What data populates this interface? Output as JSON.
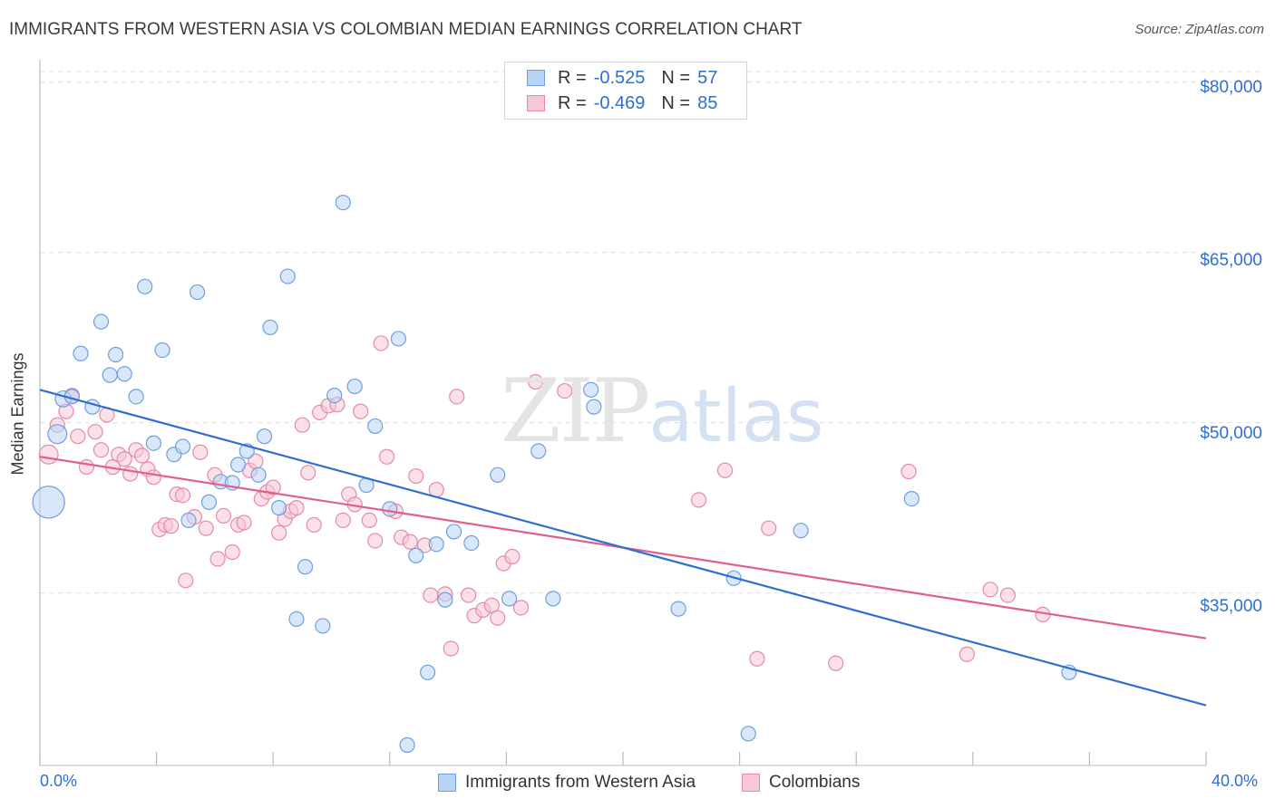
{
  "title": "IMMIGRANTS FROM WESTERN ASIA VS COLOMBIAN MEDIAN EARNINGS CORRELATION CHART",
  "source": "Source: ZipAtlas.com",
  "watermark": {
    "zip": "ZIP",
    "atlas": "atlas"
  },
  "legend": {
    "r_label": "R =",
    "n_label": "N =",
    "series1": {
      "r": "-0.525",
      "n": "57"
    },
    "series2": {
      "r": "-0.469",
      "n": "85"
    }
  },
  "colors": {
    "series1_fill": "#b9d3f5",
    "series1_stroke": "#6f9fdd",
    "series1_line": "#2f6fd0",
    "series2_fill": "#f8c7d6",
    "series2_stroke": "#e58aa8",
    "series2_line": "#e05f8e",
    "tick_text": "#2f6fd0",
    "grid": "#dddddd"
  },
  "chart_data": {
    "type": "scatter",
    "title": "IMMIGRANTS FROM WESTERN ASIA VS COLOMBIAN MEDIAN EARNINGS CORRELATION CHART",
    "xlabel": "",
    "ylabel": "Median Earnings",
    "xlim": [
      0,
      40
    ],
    "ylim": [
      21000,
      81500
    ],
    "x_tick_labels": [
      "0.0%",
      "40.0%"
    ],
    "y_ticks": [
      35000,
      50000,
      65000,
      80000
    ],
    "y_tick_labels": [
      "$35,000",
      "$50,000",
      "$65,000",
      "$80,000"
    ],
    "grid": true,
    "legend_position": "top-center",
    "series": [
      {
        "name": "Immigrants from Western Asia",
        "trend": {
          "x": [
            0,
            40
          ],
          "y": [
            52900,
            25100
          ]
        },
        "points": [
          [
            0.3,
            43000,
            2.2
          ],
          [
            0.6,
            49000,
            1.3
          ],
          [
            0.8,
            52100,
            1.1
          ],
          [
            1.1,
            52300,
            1.0
          ],
          [
            1.4,
            56100,
            1.0
          ],
          [
            1.8,
            51400,
            1.0
          ],
          [
            2.1,
            58900,
            1.0
          ],
          [
            2.4,
            54200,
            1.0
          ],
          [
            2.6,
            56000,
            1.0
          ],
          [
            2.9,
            54300,
            1.0
          ],
          [
            3.3,
            52300,
            1.0
          ],
          [
            3.6,
            62000,
            1.0
          ],
          [
            3.9,
            48200,
            1.0
          ],
          [
            4.2,
            56400,
            1.0
          ],
          [
            4.6,
            47200,
            1.0
          ],
          [
            4.9,
            47900,
            1.0
          ],
          [
            5.1,
            41400,
            1.0
          ],
          [
            5.4,
            61500,
            1.0
          ],
          [
            5.8,
            43000,
            1.0
          ],
          [
            6.2,
            44800,
            1.0
          ],
          [
            6.6,
            44700,
            1.0
          ],
          [
            6.8,
            46300,
            1.0
          ],
          [
            7.1,
            47500,
            1.0
          ],
          [
            7.5,
            45400,
            1.0
          ],
          [
            7.7,
            48800,
            1.0
          ],
          [
            7.9,
            58400,
            1.0
          ],
          [
            8.2,
            42500,
            1.0
          ],
          [
            8.5,
            62900,
            1.0
          ],
          [
            8.8,
            32700,
            1.0
          ],
          [
            9.1,
            37300,
            1.0
          ],
          [
            9.7,
            32100,
            1.0
          ],
          [
            10.1,
            52400,
            1.0
          ],
          [
            10.4,
            69400,
            1.0
          ],
          [
            10.8,
            53200,
            1.0
          ],
          [
            11.2,
            44500,
            1.0
          ],
          [
            11.5,
            49700,
            1.0
          ],
          [
            12.0,
            42400,
            1.0
          ],
          [
            12.3,
            57400,
            1.0
          ],
          [
            12.6,
            21600,
            1.0
          ],
          [
            12.9,
            38300,
            1.0
          ],
          [
            13.3,
            28000,
            1.0
          ],
          [
            13.6,
            39300,
            1.0
          ],
          [
            13.9,
            34400,
            1.0
          ],
          [
            14.2,
            40400,
            1.0
          ],
          [
            14.8,
            39400,
            1.0
          ],
          [
            15.7,
            45400,
            1.0
          ],
          [
            16.1,
            34500,
            1.0
          ],
          [
            17.1,
            47500,
            1.0
          ],
          [
            17.6,
            34500,
            1.0
          ],
          [
            18.9,
            52900,
            1.0
          ],
          [
            19.0,
            51400,
            1.0
          ],
          [
            21.9,
            33600,
            1.0
          ],
          [
            23.8,
            36300,
            1.0
          ],
          [
            24.3,
            22600,
            1.0
          ],
          [
            26.1,
            40500,
            1.0
          ],
          [
            29.9,
            43300,
            1.0
          ],
          [
            35.3,
            28000,
            1.0
          ]
        ]
      },
      {
        "name": "Colombians",
        "trend": {
          "x": [
            0,
            40
          ],
          "y": [
            47000,
            31000
          ]
        },
        "points": [
          [
            0.3,
            47200,
            1.3
          ],
          [
            0.6,
            49800,
            1.0
          ],
          [
            0.9,
            51000,
            1.0
          ],
          [
            1.1,
            52400,
            1.0
          ],
          [
            1.3,
            48800,
            1.0
          ],
          [
            1.6,
            46100,
            1.0
          ],
          [
            1.9,
            49200,
            1.0
          ],
          [
            2.1,
            47600,
            1.0
          ],
          [
            2.3,
            50700,
            1.0
          ],
          [
            2.5,
            46100,
            1.0
          ],
          [
            2.7,
            47200,
            1.0
          ],
          [
            2.9,
            46800,
            1.0
          ],
          [
            3.1,
            45500,
            1.0
          ],
          [
            3.3,
            47600,
            1.0
          ],
          [
            3.5,
            47100,
            1.0
          ],
          [
            3.7,
            45900,
            1.0
          ],
          [
            3.9,
            45200,
            1.0
          ],
          [
            4.1,
            40600,
            1.0
          ],
          [
            4.3,
            41000,
            1.0
          ],
          [
            4.5,
            40900,
            1.0
          ],
          [
            4.7,
            43700,
            1.0
          ],
          [
            4.9,
            43600,
            1.0
          ],
          [
            5.0,
            36100,
            1.0
          ],
          [
            5.3,
            41700,
            1.0
          ],
          [
            5.5,
            47400,
            1.0
          ],
          [
            5.7,
            40700,
            1.0
          ],
          [
            6.0,
            45400,
            1.0
          ],
          [
            6.1,
            38000,
            1.0
          ],
          [
            6.3,
            41800,
            1.0
          ],
          [
            6.6,
            38600,
            1.0
          ],
          [
            6.8,
            41000,
            1.0
          ],
          [
            7.0,
            41200,
            1.0
          ],
          [
            7.2,
            45800,
            1.0
          ],
          [
            7.4,
            46600,
            1.0
          ],
          [
            7.6,
            43300,
            1.0
          ],
          [
            7.8,
            43900,
            1.0
          ],
          [
            8.0,
            44300,
            1.0
          ],
          [
            8.2,
            40300,
            1.0
          ],
          [
            8.4,
            41500,
            1.0
          ],
          [
            8.6,
            42200,
            1.0
          ],
          [
            8.8,
            42500,
            1.0
          ],
          [
            9.0,
            49800,
            1.0
          ],
          [
            9.2,
            45600,
            1.0
          ],
          [
            9.4,
            41000,
            1.0
          ],
          [
            9.6,
            50900,
            1.0
          ],
          [
            9.9,
            51500,
            1.0
          ],
          [
            10.2,
            51600,
            1.0
          ],
          [
            10.4,
            41400,
            1.0
          ],
          [
            10.6,
            43700,
            1.0
          ],
          [
            10.8,
            42800,
            1.0
          ],
          [
            11.0,
            51000,
            1.0
          ],
          [
            11.3,
            41400,
            1.0
          ],
          [
            11.5,
            39600,
            1.0
          ],
          [
            11.7,
            57000,
            1.0
          ],
          [
            11.9,
            47000,
            1.0
          ],
          [
            12.2,
            42200,
            1.0
          ],
          [
            12.4,
            39900,
            1.0
          ],
          [
            12.7,
            39500,
            1.0
          ],
          [
            12.9,
            45300,
            1.0
          ],
          [
            13.2,
            39200,
            1.0
          ],
          [
            13.4,
            34800,
            1.0
          ],
          [
            13.6,
            44100,
            1.0
          ],
          [
            13.9,
            34900,
            1.0
          ],
          [
            14.1,
            30100,
            1.0
          ],
          [
            14.3,
            52300,
            1.0
          ],
          [
            14.7,
            34800,
            1.0
          ],
          [
            14.9,
            33000,
            1.0
          ],
          [
            15.2,
            33500,
            1.0
          ],
          [
            15.5,
            33900,
            1.0
          ],
          [
            15.7,
            32800,
            1.0
          ],
          [
            15.9,
            37600,
            1.0
          ],
          [
            16.2,
            38200,
            1.0
          ],
          [
            16.5,
            33700,
            1.0
          ],
          [
            17.0,
            53600,
            1.0
          ],
          [
            18.0,
            52800,
            1.0
          ],
          [
            22.6,
            43200,
            1.0
          ],
          [
            23.5,
            45800,
            1.0
          ],
          [
            24.6,
            29200,
            1.0
          ],
          [
            25.0,
            40700,
            1.0
          ],
          [
            27.3,
            28800,
            1.0
          ],
          [
            29.8,
            45700,
            1.0
          ],
          [
            31.8,
            29600,
            1.0
          ],
          [
            32.6,
            35300,
            1.0
          ],
          [
            33.2,
            34800,
            1.0
          ],
          [
            34.4,
            33100,
            1.0
          ]
        ]
      }
    ]
  }
}
